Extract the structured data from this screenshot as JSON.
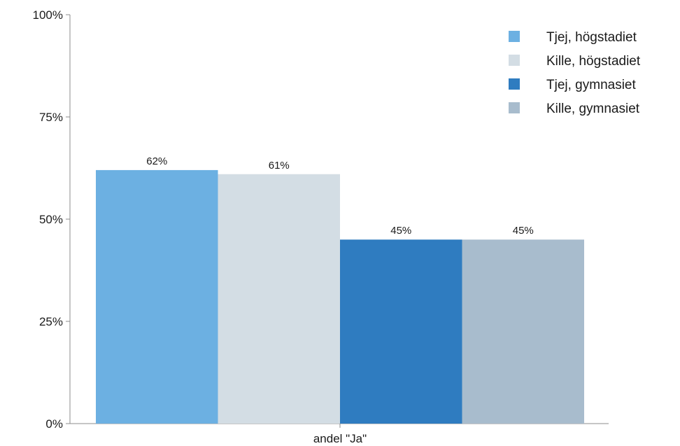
{
  "chart_data": {
    "type": "bar",
    "categories": [
      "andel \"Ja\""
    ],
    "series": [
      {
        "name": "Tjej, högstadiet",
        "values": [
          62
        ],
        "value_label": "62%",
        "color": "#6cb0e2"
      },
      {
        "name": "Kille, högstadiet",
        "values": [
          61
        ],
        "value_label": "61%",
        "color": "#d3dde4"
      },
      {
        "name": "Tjej, gymnasiet",
        "values": [
          45
        ],
        "value_label": "45%",
        "color": "#2f7cc0"
      },
      {
        "name": "Kille, gymnasiet",
        "values": [
          45
        ],
        "value_label": "45%",
        "color": "#a8bccd"
      }
    ],
    "y_ticks": [
      {
        "value": 0,
        "label": "0%"
      },
      {
        "value": 25,
        "label": "25%"
      },
      {
        "value": 50,
        "label": "50%"
      },
      {
        "value": 75,
        "label": "75%"
      },
      {
        "value": 100,
        "label": "100%"
      }
    ],
    "ylim": [
      0,
      100
    ],
    "title": "",
    "xlabel": "",
    "ylabel": "",
    "grid": false,
    "legend_position": "top-right"
  }
}
